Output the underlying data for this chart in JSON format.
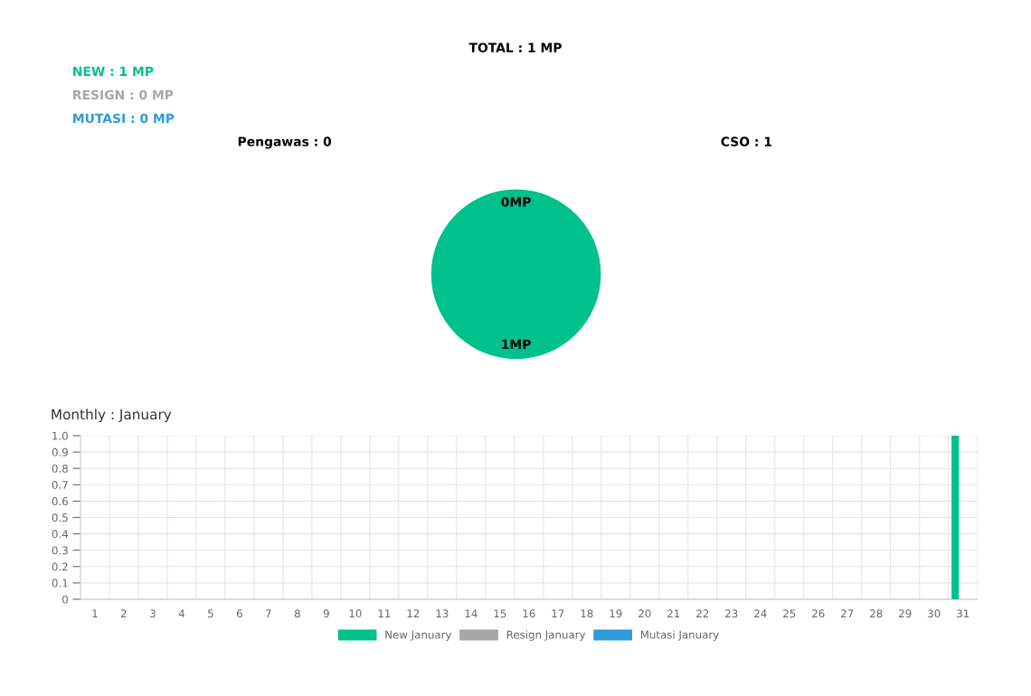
{
  "chart_data": [
    {
      "type": "pie",
      "title": "TOTAL : 1 MP",
      "annotations": [
        "NEW : 1 MP",
        "RESIGN : 0 MP",
        "MUTASI : 0 MP",
        "Pengawas : 0",
        "CSO : 1"
      ],
      "categories": [
        null,
        null
      ],
      "values": [
        0,
        1
      ],
      "colors": [
        "#a6a6a6",
        "#00c08b"
      ],
      "value_labels": [
        "0MP",
        "1MP"
      ]
    },
    {
      "type": "bar",
      "title": "Monthly : January",
      "categories": [
        "1",
        "2",
        "3",
        "4",
        "5",
        "6",
        "7",
        "8",
        "9",
        "10",
        "11",
        "12",
        "13",
        "14",
        "15",
        "16",
        "17",
        "18",
        "19",
        "20",
        "21",
        "22",
        "23",
        "24",
        "25",
        "26",
        "27",
        "28",
        "29",
        "30",
        "31"
      ],
      "series": [
        {
          "name": "New January",
          "color": "#00c08b",
          "values": [
            0,
            0,
            0,
            0,
            0,
            0,
            0,
            0,
            0,
            0,
            0,
            0,
            0,
            0,
            0,
            0,
            0,
            0,
            0,
            0,
            0,
            0,
            0,
            0,
            0,
            0,
            0,
            0,
            0,
            0,
            1
          ]
        },
        {
          "name": "Resign January",
          "color": "#a6a6a6",
          "values": [
            0,
            0,
            0,
            0,
            0,
            0,
            0,
            0,
            0,
            0,
            0,
            0,
            0,
            0,
            0,
            0,
            0,
            0,
            0,
            0,
            0,
            0,
            0,
            0,
            0,
            0,
            0,
            0,
            0,
            0,
            0
          ]
        },
        {
          "name": "Mutasi January",
          "color": "#2d9cdb",
          "values": [
            0,
            0,
            0,
            0,
            0,
            0,
            0,
            0,
            0,
            0,
            0,
            0,
            0,
            0,
            0,
            0,
            0,
            0,
            0,
            0,
            0,
            0,
            0,
            0,
            0,
            0,
            0,
            0,
            0,
            0,
            0
          ]
        }
      ],
      "ylim": [
        0,
        1
      ],
      "yticks": [
        {
          "value": 0,
          "label": "0"
        },
        {
          "value": 0.1,
          "label": "0.1"
        },
        {
          "value": 0.2,
          "label": "0.2"
        },
        {
          "value": 0.3,
          "label": "0.3"
        },
        {
          "value": 0.4,
          "label": "0.4"
        },
        {
          "value": 0.5,
          "label": "0.5"
        },
        {
          "value": 0.6,
          "label": "0.6"
        },
        {
          "value": 0.7,
          "label": "0.7"
        },
        {
          "value": 0.8,
          "label": "0.8"
        },
        {
          "value": 0.9,
          "label": "0.9"
        },
        {
          "value": 1,
          "label": "1.0"
        }
      ],
      "grid": true,
      "legend": "bottom"
    }
  ]
}
